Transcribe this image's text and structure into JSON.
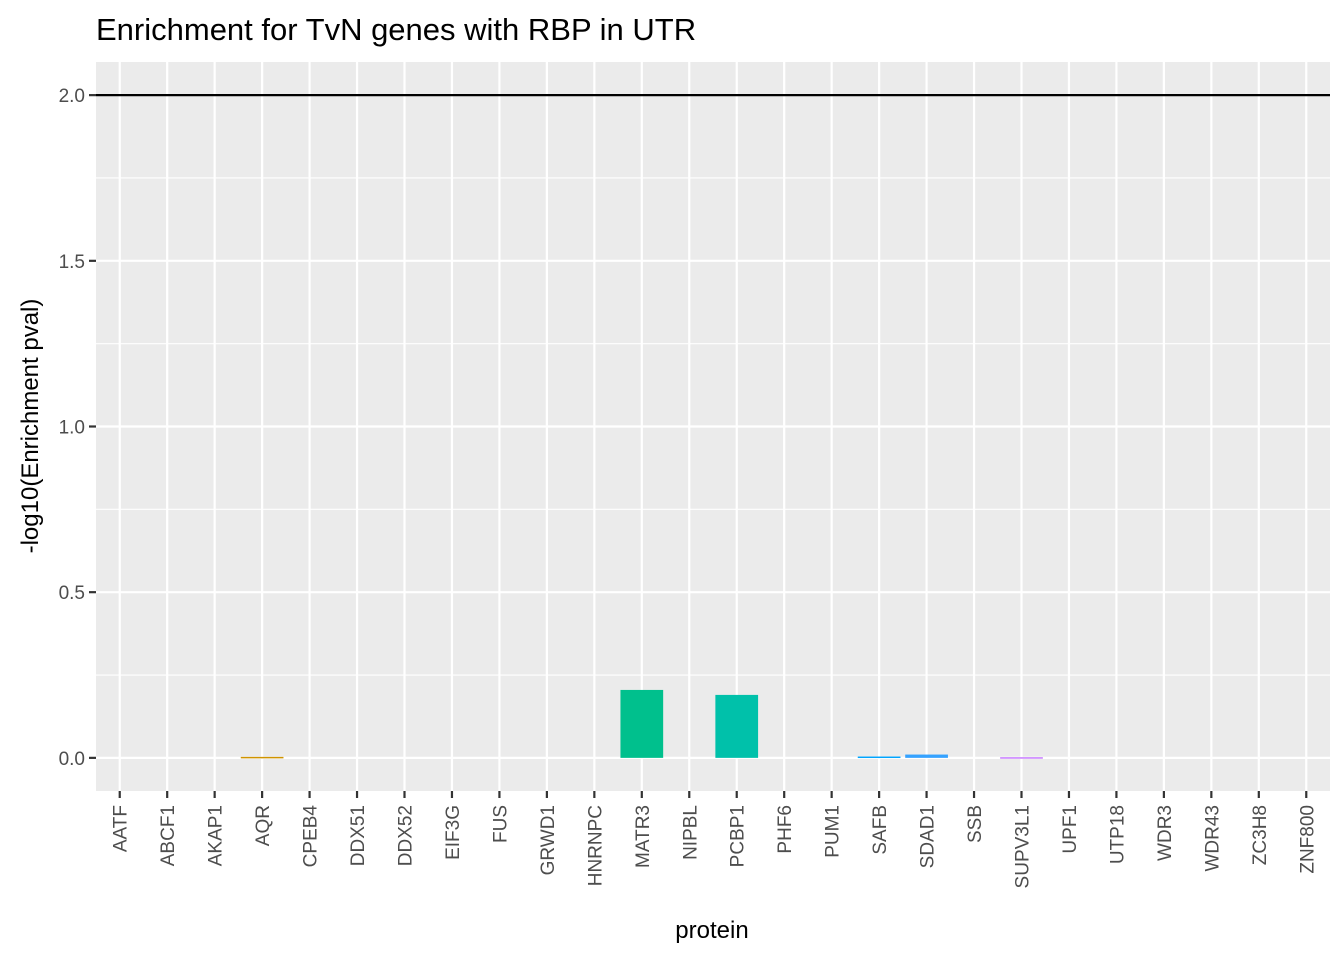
{
  "chart_data": {
    "type": "bar",
    "title": "Enrichment for TvN genes with RBP in UTR",
    "xlabel": "protein",
    "ylabel": "-log10(Enrichment pval)",
    "ylim": [
      -0.1,
      2.1
    ],
    "yticks": [
      "0.0",
      "0.5",
      "1.0",
      "1.5",
      "2.0"
    ],
    "grid": true,
    "legend": "none",
    "reference_line": {
      "y": 2.0,
      "color": "#000000"
    },
    "categories": [
      "AATF",
      "ABCF1",
      "AKAP1",
      "AQR",
      "CPEB4",
      "DDX51",
      "DDX52",
      "EIF3G",
      "FUS",
      "GRWD1",
      "HNRNPC",
      "MATR3",
      "NIPBL",
      "PCBP1",
      "PHF6",
      "PUM1",
      "SAFB",
      "SDAD1",
      "SSB",
      "SUPV3L1",
      "UPF1",
      "UTP18",
      "WDR3",
      "WDR43",
      "ZC3H8",
      "ZNF800"
    ],
    "values": [
      0,
      0,
      0,
      0.003,
      0,
      0,
      0,
      0,
      0,
      0,
      0,
      0.205,
      0,
      0.19,
      0,
      0,
      0.004,
      0.01,
      0,
      0.002,
      0,
      0,
      0,
      0,
      0,
      0
    ],
    "colors": [
      "#F8766D",
      "#F07F4A",
      "#E38900",
      "#D09400",
      "#B79F00",
      "#99A800",
      "#74B000",
      "#39B600",
      "#00BA38",
      "#00BE6B",
      "#00C08B",
      "#00C08D",
      "#00BFC4",
      "#00C1AA",
      "#00BBDA",
      "#00B5E9",
      "#00A5FF",
      "#35A2FF",
      "#9590FF",
      "#C77CFF",
      "#E76BF3",
      "#F962DD",
      "#FF61C3",
      "#FF65AE",
      "#FF6C91",
      "#FC717F"
    ]
  }
}
